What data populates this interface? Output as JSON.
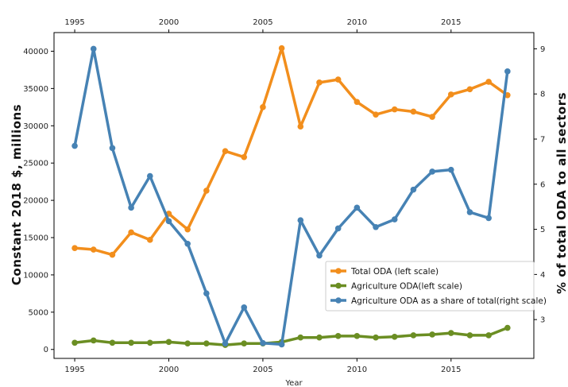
{
  "chart_data": {
    "type": "line",
    "title": "",
    "xlabel": "Year",
    "ylabel": "Constant 2018 $, millions",
    "ylabel_right": "% of total ODA to all sectors",
    "x": [
      1995,
      1996,
      1997,
      1998,
      1999,
      2000,
      2001,
      2002,
      2003,
      2004,
      2005,
      2006,
      2007,
      2008,
      2009,
      2010,
      2011,
      2012,
      2013,
      2014,
      2015,
      2016,
      2017,
      2018
    ],
    "xlim": [
      1993.9,
      2019.4
    ],
    "xticks": [
      1995,
      2000,
      2005,
      2010,
      2015
    ],
    "xtick_labels": [
      "1995",
      "2000",
      "2005",
      "2010",
      "2015"
    ],
    "ylim_left": [
      -1200,
      42500
    ],
    "yticks_left": [
      0,
      5000,
      10000,
      15000,
      20000,
      25000,
      30000,
      35000,
      40000
    ],
    "ytick_labels_left": [
      "0",
      "5000",
      "10000",
      "15000",
      "20000",
      "25000",
      "30000",
      "35000",
      "40000"
    ],
    "ylim_right": [
      2.14,
      9.36
    ],
    "yticks_right": [
      3,
      4,
      5,
      6,
      7,
      8,
      9
    ],
    "ytick_labels_right": [
      "3",
      "4",
      "5",
      "6",
      "7",
      "8",
      "9"
    ],
    "grid": false,
    "legend_position": "lower-right",
    "series": [
      {
        "name": "Total ODA (left scale)",
        "axis": "left",
        "color": "#f28e1c",
        "values": [
          13600,
          13400,
          12700,
          15700,
          14700,
          18200,
          16100,
          21300,
          26600,
          25800,
          32500,
          40400,
          29900,
          35800,
          36200,
          33200,
          31500,
          32200,
          31900,
          31200,
          34200,
          34900,
          35900,
          34100
        ]
      },
      {
        "name": "Agriculture ODA(left scale)",
        "axis": "left",
        "color": "#6b8e23",
        "values": [
          900,
          1200,
          900,
          900,
          900,
          1000,
          800,
          800,
          600,
          800,
          800,
          1000,
          1600,
          1600,
          1800,
          1800,
          1600,
          1700,
          1900,
          2000,
          2200,
          1900,
          1900,
          2900
        ]
      },
      {
        "name": "Agriculture ODA as a share of total(right scale)",
        "axis": "right",
        "color": "#4682b4",
        "values": [
          6.85,
          9.0,
          6.8,
          5.48,
          6.18,
          5.18,
          4.68,
          3.58,
          2.47,
          3.27,
          2.48,
          2.45,
          5.2,
          4.42,
          5.02,
          5.48,
          5.05,
          5.22,
          5.88,
          6.28,
          6.32,
          5.38,
          5.25,
          8.5
        ]
      }
    ]
  }
}
